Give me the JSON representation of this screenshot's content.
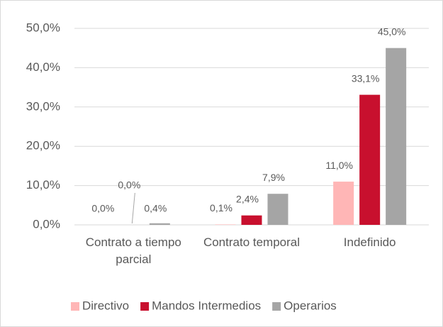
{
  "chart_data": {
    "type": "bar",
    "categories": [
      "Contrato a tiempo parcial",
      "Contrato temporal",
      "Indefinido"
    ],
    "series": [
      {
        "name": "Directivo",
        "color": "#ffb6b6",
        "values": [
          0.0,
          0.1,
          11.0
        ],
        "value_labels": [
          "0,0%",
          "0,1%",
          "11,0%"
        ]
      },
      {
        "name": "Mandos Intermedios",
        "color": "#c8102e",
        "values": [
          0.0,
          2.4,
          33.1
        ],
        "value_labels": [
          "0,0%",
          "2,4%",
          "33,1%"
        ]
      },
      {
        "name": "Operarios",
        "color": "#a5a5a5",
        "values": [
          0.4,
          7.9,
          45.0
        ],
        "value_labels": [
          "0,4%",
          "7,9%",
          "45,0%"
        ]
      }
    ],
    "ylim": [
      0,
      50
    ],
    "yticks": [
      {
        "value": 0,
        "label": "0,0%"
      },
      {
        "value": 10,
        "label": "10,0%"
      },
      {
        "value": 20,
        "label": "20,0%"
      },
      {
        "value": 30,
        "label": "30,0%"
      },
      {
        "value": 40,
        "label": "40,0%"
      },
      {
        "value": 50,
        "label": "50,0%"
      }
    ],
    "grid": true,
    "legend": "bottom"
  }
}
